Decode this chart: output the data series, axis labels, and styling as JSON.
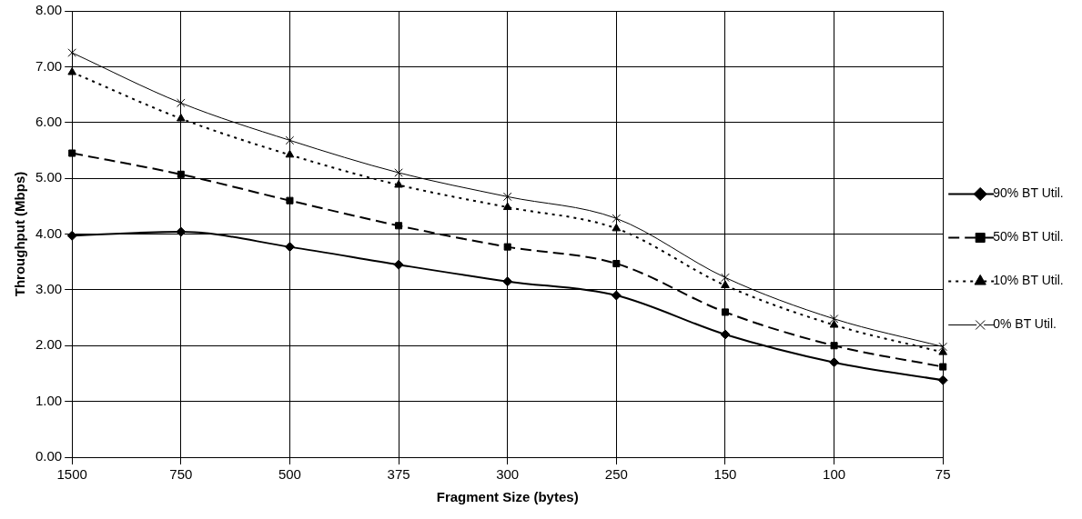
{
  "chart_data": {
    "type": "line",
    "xlabel": "Fragment Size (bytes)",
    "ylabel": "Throughput (Mbps)",
    "categories": [
      "1500",
      "750",
      "500",
      "375",
      "300",
      "250",
      "150",
      "100",
      "75"
    ],
    "ylim": [
      0,
      8
    ],
    "yticks": [
      {
        "value": 0,
        "label": "0.00"
      },
      {
        "value": 1,
        "label": "1.00"
      },
      {
        "value": 2,
        "label": "2.00"
      },
      {
        "value": 3,
        "label": "3.00"
      },
      {
        "value": 4,
        "label": "4.00"
      },
      {
        "value": 5,
        "label": "5.00"
      },
      {
        "value": 6,
        "label": "6.00"
      },
      {
        "value": 7,
        "label": "7.00"
      },
      {
        "value": 8,
        "label": "8.00"
      }
    ],
    "grid": true,
    "legend": "right",
    "series": [
      {
        "name": "90% BT Util.",
        "color": "#000000",
        "marker": "diamond",
        "line_style": "solid",
        "values": [
          3.97,
          4.04,
          3.77,
          3.45,
          3.15,
          2.9,
          2.2,
          1.7,
          1.38
        ]
      },
      {
        "name": "50% BT Util.",
        "color": "#000000",
        "marker": "square",
        "line_style": "dashed",
        "values": [
          5.45,
          5.07,
          4.6,
          4.15,
          3.77,
          3.47,
          2.6,
          2.0,
          1.62
        ]
      },
      {
        "name": "10% BT Util.",
        "color": "#000000",
        "marker": "triangle",
        "line_style": "dotted",
        "values": [
          6.9,
          6.07,
          5.42,
          4.88,
          4.48,
          4.1,
          3.08,
          2.37,
          1.88
        ]
      },
      {
        "name": "0% BT Util.",
        "color": "#000000",
        "marker": "cross",
        "line_style": "solid",
        "values": [
          7.25,
          6.35,
          5.68,
          5.1,
          4.67,
          4.28,
          3.22,
          2.48,
          1.98
        ]
      }
    ]
  }
}
